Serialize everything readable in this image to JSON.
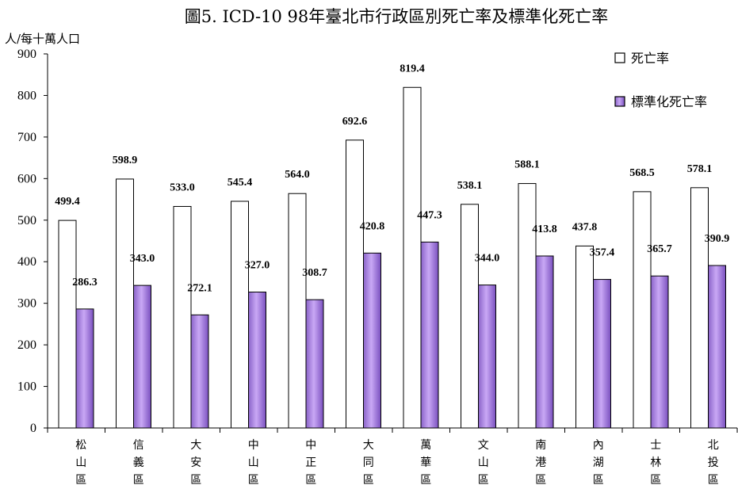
{
  "chart_data": {
    "type": "bar",
    "title": "圖5. ICD-10  98年臺北市行政區別死亡率及標準化死亡率",
    "ylabel": "人/每十萬人口",
    "xlabel": "",
    "ylim": [
      0,
      900
    ],
    "yticks": [
      0,
      100,
      200,
      300,
      400,
      500,
      600,
      700,
      800,
      900
    ],
    "categories": [
      "松山區",
      "信義區",
      "大安區",
      "中山區",
      "中正區",
      "大同區",
      "萬華區",
      "文山區",
      "南港區",
      "內湖區",
      "士林區",
      "北投區"
    ],
    "series": [
      {
        "name": "死亡率",
        "color": "#ffffff",
        "values": [
          499.4,
          598.9,
          533.0,
          545.4,
          564.0,
          692.6,
          819.4,
          538.1,
          588.1,
          437.8,
          568.5,
          578.1
        ]
      },
      {
        "name": "標準化死亡率",
        "color": "#b48ee8",
        "values": [
          286.3,
          343.0,
          272.1,
          327.0,
          308.7,
          420.8,
          447.3,
          344.0,
          413.8,
          357.4,
          365.7,
          390.9
        ]
      }
    ],
    "grid": false,
    "legend_position": "top-right"
  }
}
